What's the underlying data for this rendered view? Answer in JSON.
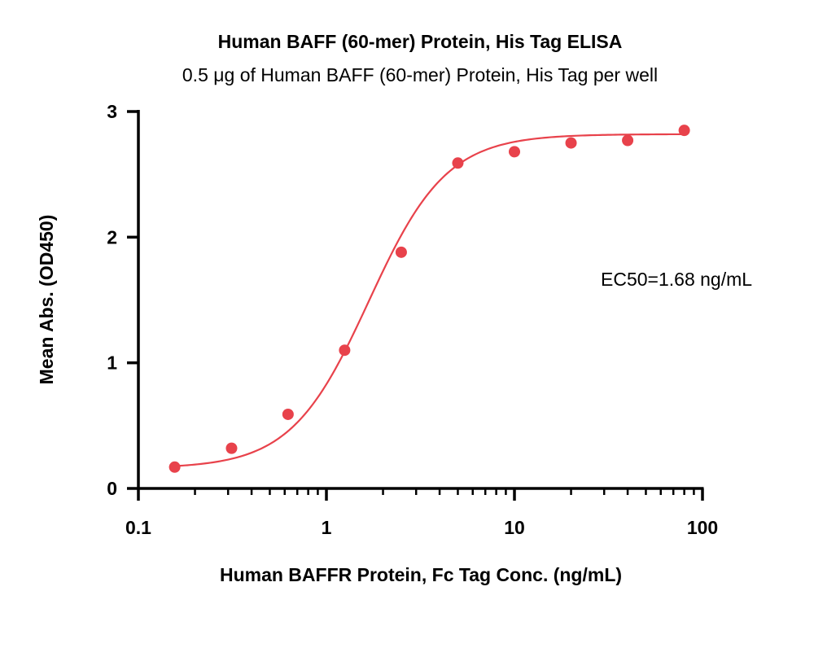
{
  "chart_data": {
    "type": "scatter",
    "title": "Human BAFF (60-mer) Protein, His Tag ELISA",
    "subtitle": "0.5 μg of Human BAFF (60-mer) Protein, His Tag per well",
    "xlabel": "Human BAFFR Protein, Fc Tag Conc. (ng/mL)",
    "ylabel": "Mean Abs. (OD450)",
    "x_scale": "log",
    "xlim": [
      0.1,
      100
    ],
    "ylim": [
      0,
      3
    ],
    "x_ticks": [
      0.1,
      1,
      10,
      100
    ],
    "x_tick_labels": [
      "0.1",
      "1",
      "10",
      "100"
    ],
    "y_ticks": [
      0,
      1,
      2,
      3
    ],
    "y_tick_labels": [
      "0",
      "1",
      "2",
      "3"
    ],
    "grid": false,
    "series": [
      {
        "x": [
          0.156,
          0.313,
          0.625,
          1.25,
          2.5,
          5,
          10,
          20,
          40,
          80
        ],
        "y": [
          0.17,
          0.32,
          0.59,
          1.1,
          1.88,
          2.59,
          2.68,
          2.75,
          2.77,
          2.85
        ],
        "color": "#e8424b"
      }
    ],
    "fit_curve": {
      "model": "4PL",
      "bottom": 0.16,
      "top": 2.82,
      "ec50": 1.68,
      "hill": 2.1,
      "color": "#e8424b"
    },
    "annotation": "EC50=1.68 ng/mL"
  }
}
